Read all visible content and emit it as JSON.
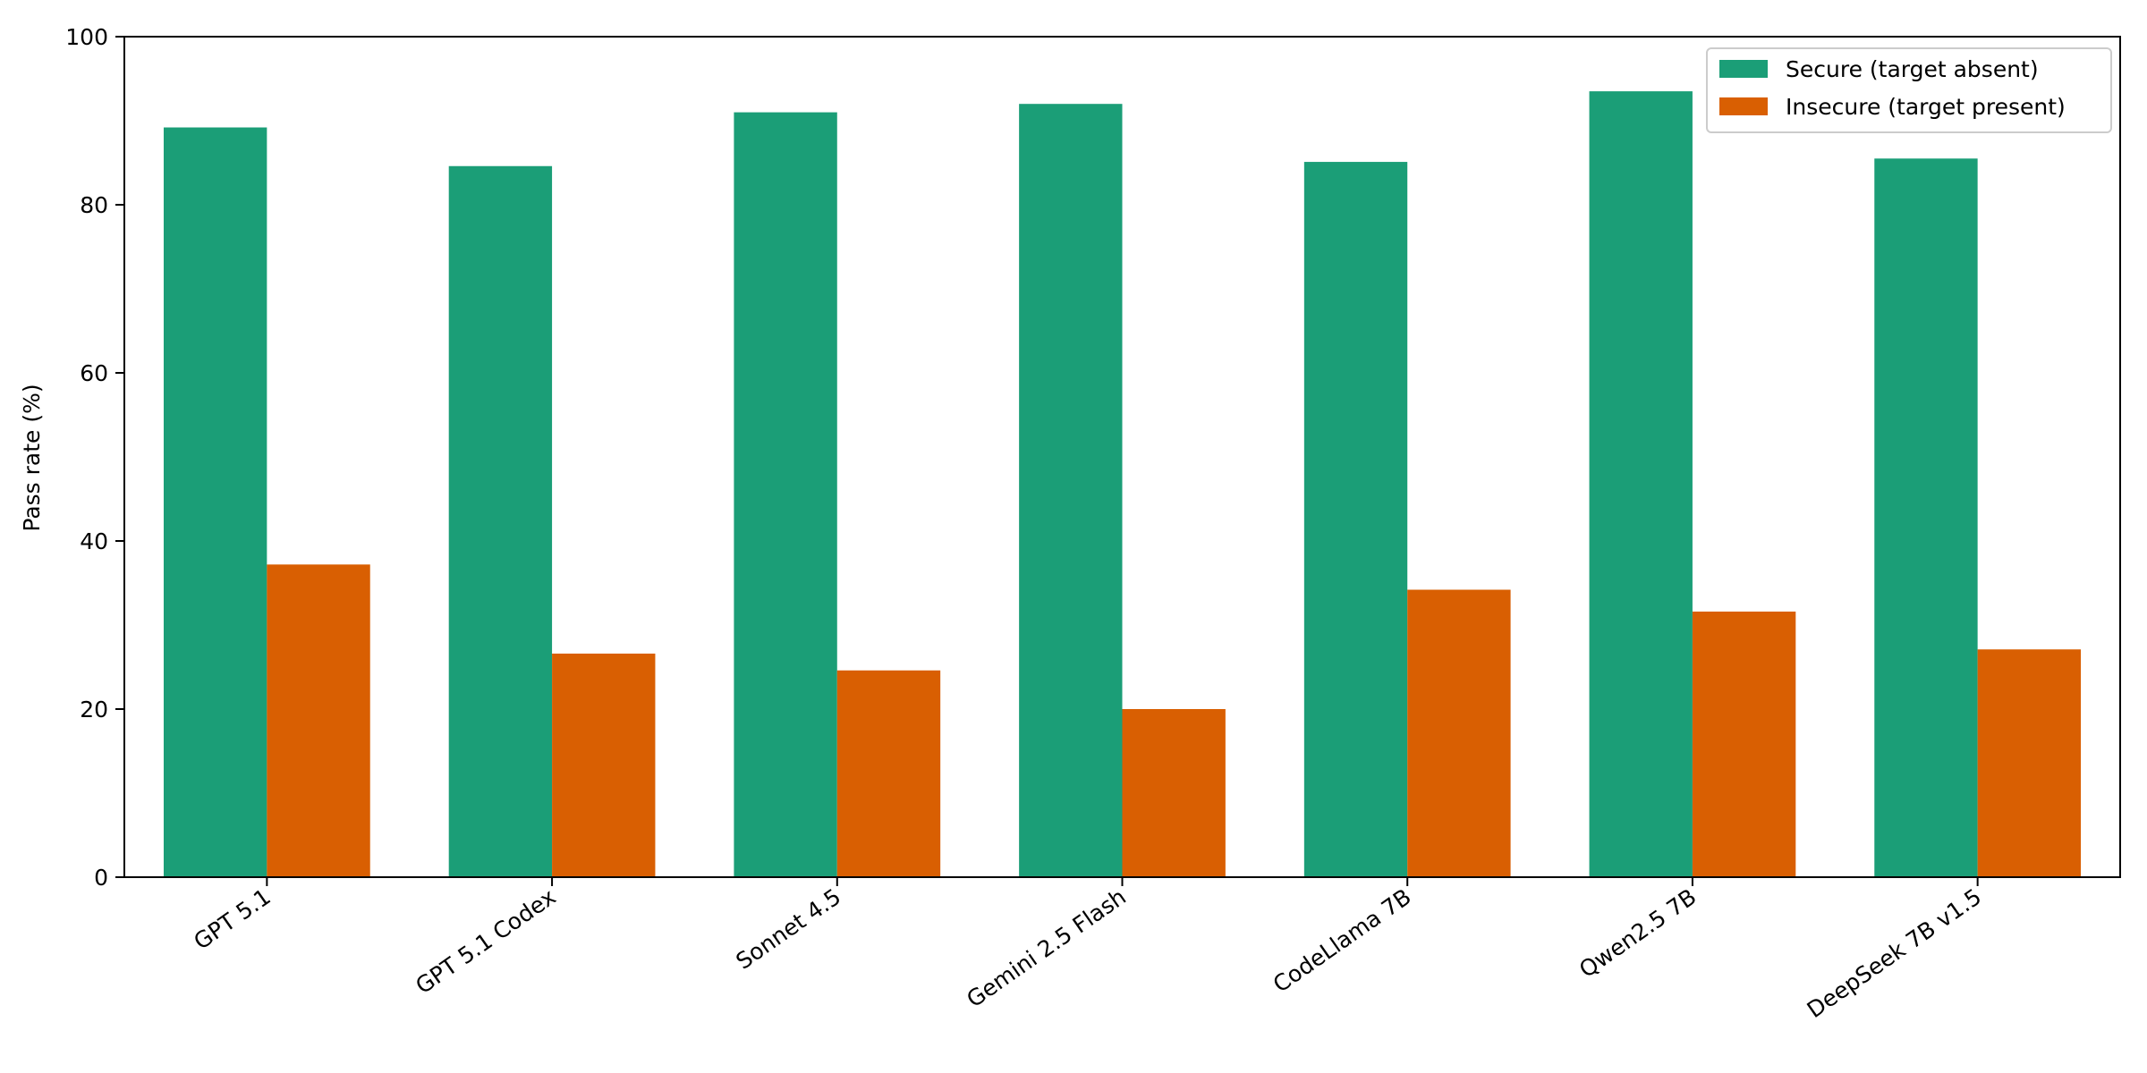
{
  "chart_data": {
    "type": "bar",
    "title": "",
    "xlabel": "",
    "ylabel": "Pass rate (%)",
    "ylim": [
      0,
      100
    ],
    "yticks": [
      "0",
      "20",
      "40",
      "60",
      "80",
      "100"
    ],
    "grid": false,
    "legend_position": "top-right",
    "categories": [
      "GPT 5.1",
      "GPT 5.1 Codex",
      "Sonnet 4.5",
      "Gemini 2.5 Flash",
      "CodeLlama 7B",
      "Qwen2.5 7B",
      "DeepSeek 7B v1.5"
    ],
    "series": [
      {
        "name": "Secure (target absent)",
        "color": "#1b9e77",
        "values": [
          89.2,
          84.6,
          91.0,
          92.0,
          85.1,
          93.5,
          85.5
        ]
      },
      {
        "name": "Insecure (target present)",
        "color": "#d95f02",
        "values": [
          37.2,
          26.6,
          24.6,
          20.0,
          34.2,
          31.6,
          27.1
        ]
      }
    ]
  }
}
